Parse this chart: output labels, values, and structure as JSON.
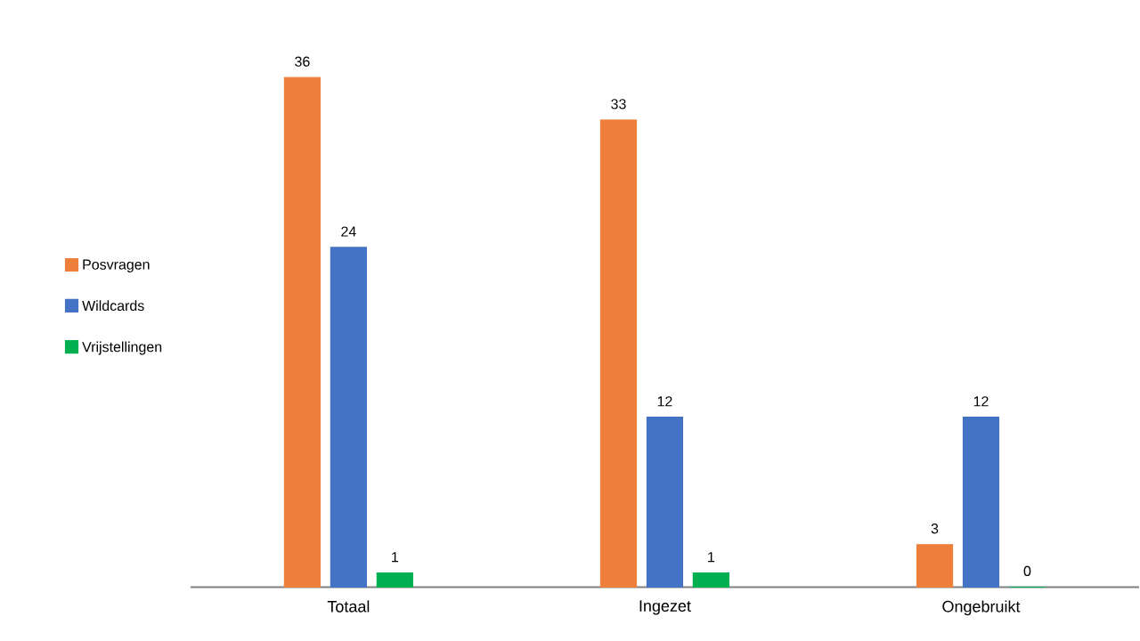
{
  "chart_data": {
    "type": "bar",
    "categories": [
      "Totaal",
      "Ingezet",
      "Ongebruikt"
    ],
    "series": [
      {
        "name": "Posvragen",
        "color": "#ee7f3a",
        "values": [
          36,
          33,
          3
        ]
      },
      {
        "name": "Wildcards",
        "color": "#4472c4",
        "values": [
          24,
          12,
          12
        ]
      },
      {
        "name": "Vrijstellingen",
        "color": "#00b050",
        "values": [
          1,
          1,
          0
        ]
      }
    ],
    "data_labels": true,
    "legend": "left",
    "grid": false
  }
}
